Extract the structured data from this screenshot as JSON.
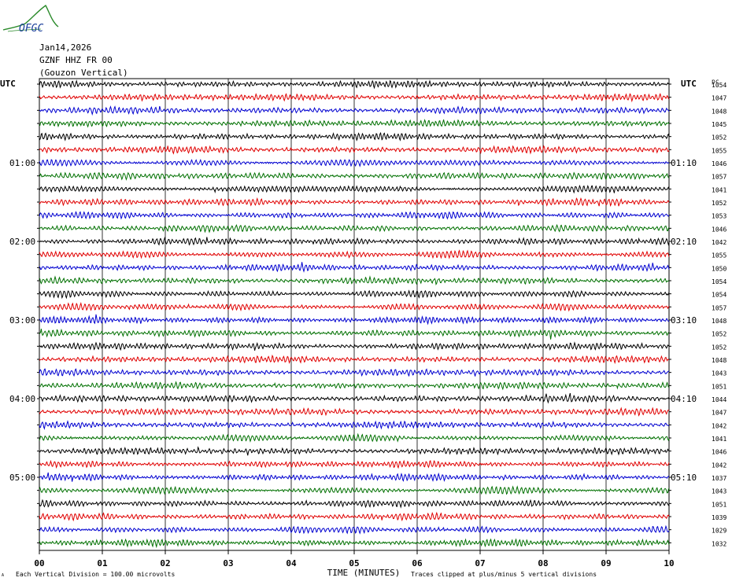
{
  "header": {
    "date": "Jan14,2026",
    "station": "GZNF HHZ FR 00",
    "component": "(Gouzon Vertical)",
    "logo_text": "OFGC"
  },
  "axes": {
    "left_utc": "UTC",
    "right_utc": "UTC",
    "right_code": "pc",
    "x_title": "TIME (MINUTES)",
    "x_ticks": [
      "00",
      "01",
      "02",
      "03",
      "04",
      "05",
      "06",
      "07",
      "08",
      "09",
      "10"
    ],
    "left_hour_labels": [
      {
        "row": 6,
        "text": "01:00"
      },
      {
        "row": 12,
        "text": "02:00"
      },
      {
        "row": 18,
        "text": "03:00"
      },
      {
        "row": 24,
        "text": "04:00"
      },
      {
        "row": 30,
        "text": "05:00"
      }
    ],
    "right_hour_labels": [
      {
        "row": 6,
        "text": "01:10"
      },
      {
        "row": 12,
        "text": "02:10"
      },
      {
        "row": 18,
        "text": "03:10"
      },
      {
        "row": 24,
        "text": "04:10"
      },
      {
        "row": 30,
        "text": "05:10"
      }
    ]
  },
  "footer": {
    "mark": "A",
    "division_note": "Each Vertical Division =  100.00 microvolts",
    "clip_note": "Traces clipped at plus/minus 5 vertical divisions"
  },
  "colors": {
    "trace_cycle": [
      "#000000",
      "#e00000",
      "#0000d0",
      "#007000"
    ],
    "grid": "#000000",
    "logo": "#2a8a2a",
    "logo_text": "#1a3f9a"
  },
  "chart_data": {
    "type": "helicorder",
    "x_range_minutes": [
      0,
      10
    ],
    "rows": 36,
    "row_interval_minutes": 10,
    "row_values": [
      1054,
      1047,
      1048,
      1045,
      1052,
      1055,
      1046,
      1057,
      1041,
      1052,
      1053,
      1046,
      1042,
      1055,
      1050,
      1054,
      1054,
      1057,
      1048,
      1052,
      1052,
      1048,
      1043,
      1051,
      1044,
      1047,
      1042,
      1041,
      1046,
      1042,
      1037,
      1043,
      1051,
      1039,
      1029,
      1032
    ]
  }
}
